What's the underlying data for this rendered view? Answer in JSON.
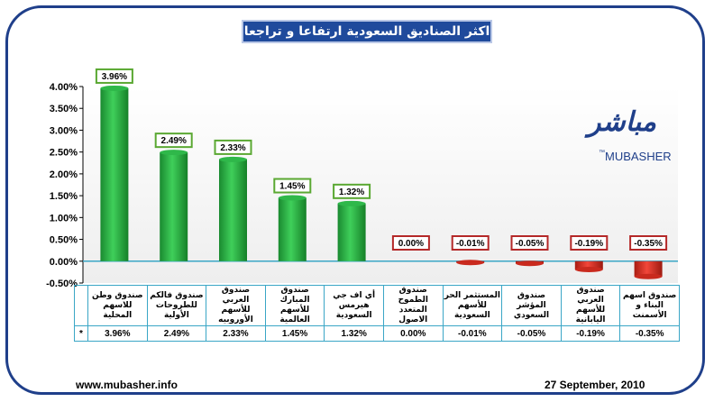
{
  "chart_data": {
    "type": "bar",
    "title": "اكثر الصناديق السعودية ارتفاعا و تراجعا",
    "categories": [
      "صندوق وطن للاسهم المحلية",
      "صندوق فالكم للطروحات الأولية",
      "صندوق العربي للأسهم الأوروبيه",
      "صندوق المبارك للأسهم العالمية",
      "أي اف جي هيرمس السعودية",
      "صندوق الطموح المتعدد الاصول",
      "المستثمر الحر للأسهم السعودية",
      "صندوق المؤشر السعودي",
      "صندوق العربي للأسهم اليابانية",
      "صندوق اسهم البناء و الأسمنت"
    ],
    "values": [
      3.96,
      2.49,
      2.33,
      1.45,
      1.32,
      0.0,
      -0.01,
      -0.05,
      -0.19,
      -0.35
    ],
    "value_labels": [
      "3.96%",
      "2.49%",
      "2.33%",
      "1.45%",
      "1.32%",
      "0.00%",
      "-0.01%",
      "-0.05%",
      "-0.19%",
      "-0.35%"
    ],
    "yticks": [
      -0.5,
      0.0,
      0.5,
      1.0,
      1.5,
      2.0,
      2.5,
      3.0,
      3.5,
      4.0
    ],
    "ytick_labels": [
      "-0.50%",
      "0.00%",
      "0.50%",
      "1.00%",
      "1.50%",
      "2.00%",
      "2.50%",
      "3.00%",
      "3.50%",
      "4.00%"
    ],
    "ylim": [
      -0.5,
      4.0
    ],
    "xlabel": "",
    "ylabel": "",
    "grid": false,
    "colors": {
      "positive": "#22a83e",
      "negative": "#d42a1f",
      "positive_label_border": "#5aa832",
      "negative_label_border": "#b42828"
    }
  },
  "table": {
    "marker": "*"
  },
  "logo": {
    "arabic": "مباشر",
    "latin": "MUBASHER",
    "tm": "™"
  },
  "footer": {
    "website": "www.mubasher.info",
    "date": "27 September, 2010"
  }
}
